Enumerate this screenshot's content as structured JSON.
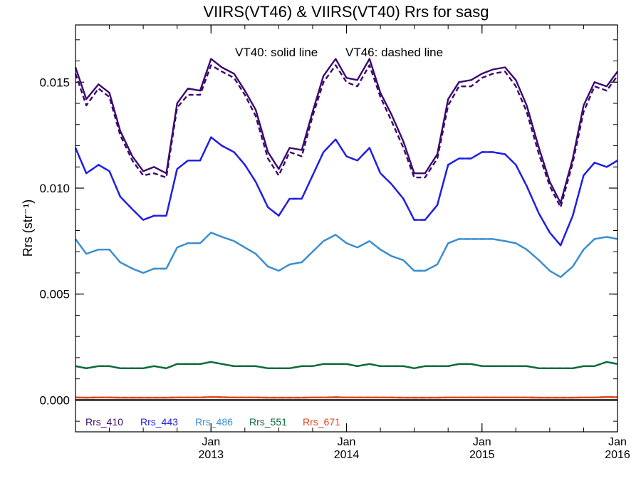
{
  "chart_data": {
    "type": "line",
    "title": "VIIRS(VT46) & VIIRS(VT40)  Rrs for sasg",
    "ylabel": "Rrs (str⁻¹)",
    "xlabel": "",
    "annotations": [
      "VT40: solid line",
      "VT46: dashed line"
    ],
    "ylim": [
      -0.0015,
      0.0177
    ],
    "xlim": [
      2012.0,
      2016.0
    ],
    "y_ticks": [
      0.0,
      0.005,
      0.01,
      0.015
    ],
    "y_tick_labels": [
      "0.000",
      "0.005",
      "0.010",
      "0.015"
    ],
    "x_ticks": [
      {
        "x": 2013.0,
        "month": "Jan",
        "year": "2013"
      },
      {
        "x": 2014.0,
        "month": "Jan",
        "year": "2014"
      },
      {
        "x": 2015.0,
        "month": "Jan",
        "year": "2015"
      },
      {
        "x": 2016.0,
        "month": "Jan",
        "year": "2016"
      }
    ],
    "legend_position": "bottom-left",
    "x": [
      2012.0,
      2012.08,
      2012.17,
      2012.25,
      2012.33,
      2012.42,
      2012.5,
      2012.58,
      2012.67,
      2012.75,
      2012.83,
      2012.92,
      2013.0,
      2013.08,
      2013.17,
      2013.25,
      2013.33,
      2013.42,
      2013.5,
      2013.58,
      2013.67,
      2013.75,
      2013.83,
      2013.92,
      2014.0,
      2014.08,
      2014.17,
      2014.25,
      2014.33,
      2014.42,
      2014.5,
      2014.58,
      2014.67,
      2014.75,
      2014.83,
      2014.92,
      2015.0,
      2015.08,
      2015.17,
      2015.25,
      2015.33,
      2015.42,
      2015.5,
      2015.58,
      2015.67,
      2015.75,
      2015.83,
      2015.92,
      2016.0
    ],
    "series": [
      {
        "name": "Rrs_410",
        "color": "#3b0a6e",
        "style": "solid",
        "values": [
          0.0157,
          0.0142,
          0.0149,
          0.0145,
          0.0127,
          0.0115,
          0.0108,
          0.011,
          0.0107,
          0.014,
          0.0147,
          0.0146,
          0.0161,
          0.0157,
          0.0154,
          0.0146,
          0.0137,
          0.0117,
          0.0109,
          0.0119,
          0.0118,
          0.0136,
          0.0153,
          0.0161,
          0.0152,
          0.0151,
          0.0161,
          0.0145,
          0.0135,
          0.0122,
          0.0107,
          0.0107,
          0.0116,
          0.0142,
          0.015,
          0.0151,
          0.0154,
          0.0156,
          0.0157,
          0.0151,
          0.0139,
          0.0119,
          0.0103,
          0.0093,
          0.0114,
          0.0139,
          0.015,
          0.0148,
          0.0155
        ]
      },
      {
        "name": "Rrs_410",
        "color": "#3b0a6e",
        "style": "dashed",
        "values": [
          0.0154,
          0.0139,
          0.0147,
          0.0143,
          0.0125,
          0.0113,
          0.0106,
          0.0107,
          0.0105,
          0.0138,
          0.0144,
          0.0144,
          0.0158,
          0.0155,
          0.0152,
          0.0144,
          0.0134,
          0.0114,
          0.0106,
          0.0117,
          0.0115,
          0.0134,
          0.015,
          0.0158,
          0.015,
          0.0148,
          0.0158,
          0.0143,
          0.0132,
          0.0119,
          0.0105,
          0.0105,
          0.0114,
          0.0139,
          0.0148,
          0.0148,
          0.0152,
          0.0154,
          0.0155,
          0.0148,
          0.0136,
          0.0116,
          0.0101,
          0.0091,
          0.0112,
          0.0136,
          0.0148,
          0.0146,
          0.0153
        ]
      },
      {
        "name": "Rrs_443",
        "color": "#1f1fe6",
        "style": "solid",
        "values": [
          0.0119,
          0.0107,
          0.0111,
          0.0108,
          0.0096,
          0.009,
          0.0085,
          0.0087,
          0.0087,
          0.0109,
          0.0113,
          0.0113,
          0.0124,
          0.012,
          0.0117,
          0.0111,
          0.0103,
          0.0091,
          0.0087,
          0.0095,
          0.0095,
          0.0106,
          0.0117,
          0.0123,
          0.0115,
          0.0113,
          0.0119,
          0.0107,
          0.0102,
          0.0095,
          0.0085,
          0.0085,
          0.0092,
          0.0111,
          0.0114,
          0.0114,
          0.0117,
          0.0117,
          0.0116,
          0.0111,
          0.0101,
          0.0088,
          0.0079,
          0.0073,
          0.0087,
          0.0106,
          0.0112,
          0.011,
          0.0113
        ]
      },
      {
        "name": "Rrs_443",
        "color": "#1f1fe6",
        "style": "dashed",
        "values": [
          0.0119,
          0.0107,
          0.0111,
          0.0108,
          0.0096,
          0.009,
          0.0085,
          0.0087,
          0.0087,
          0.0109,
          0.0113,
          0.0113,
          0.0124,
          0.012,
          0.0117,
          0.0111,
          0.0103,
          0.0091,
          0.0087,
          0.0095,
          0.0095,
          0.0106,
          0.0117,
          0.0123,
          0.0115,
          0.0113,
          0.0119,
          0.0107,
          0.0102,
          0.0095,
          0.0085,
          0.0085,
          0.0092,
          0.0111,
          0.0114,
          0.0114,
          0.0117,
          0.0117,
          0.0116,
          0.0111,
          0.0101,
          0.0088,
          0.0079,
          0.0073,
          0.0087,
          0.0106,
          0.0112,
          0.011,
          0.0113
        ]
      },
      {
        "name": "Rrs_486",
        "color": "#3b8fcf",
        "style": "solid",
        "values": [
          0.0076,
          0.0069,
          0.0071,
          0.0071,
          0.0065,
          0.0062,
          0.006,
          0.0062,
          0.0062,
          0.0072,
          0.0074,
          0.0074,
          0.0079,
          0.0077,
          0.0075,
          0.0072,
          0.0069,
          0.0063,
          0.0061,
          0.0064,
          0.0065,
          0.007,
          0.0075,
          0.0078,
          0.0074,
          0.0072,
          0.0075,
          0.0071,
          0.0068,
          0.0066,
          0.0061,
          0.0061,
          0.0064,
          0.0074,
          0.0076,
          0.0076,
          0.0076,
          0.0076,
          0.0075,
          0.0074,
          0.0071,
          0.0066,
          0.0061,
          0.0058,
          0.0063,
          0.0071,
          0.0076,
          0.0077,
          0.0076
        ]
      },
      {
        "name": "Rrs_486",
        "color": "#3b8fcf",
        "style": "dashed",
        "values": [
          0.0076,
          0.0069,
          0.0071,
          0.0071,
          0.0065,
          0.0062,
          0.006,
          0.0062,
          0.0062,
          0.0072,
          0.0074,
          0.0074,
          0.0079,
          0.0077,
          0.0075,
          0.0072,
          0.0069,
          0.0063,
          0.0061,
          0.0064,
          0.0065,
          0.007,
          0.0075,
          0.0078,
          0.0074,
          0.0072,
          0.0075,
          0.0071,
          0.0068,
          0.0066,
          0.0061,
          0.0061,
          0.0064,
          0.0074,
          0.0076,
          0.0076,
          0.0076,
          0.0076,
          0.0075,
          0.0074,
          0.0071,
          0.0066,
          0.0061,
          0.0058,
          0.0063,
          0.0071,
          0.0076,
          0.0077,
          0.0076
        ]
      },
      {
        "name": "Rrs_551",
        "color": "#0d6b3a",
        "style": "solid",
        "values": [
          0.0016,
          0.0015,
          0.0016,
          0.0016,
          0.0015,
          0.0015,
          0.0015,
          0.0016,
          0.0015,
          0.0017,
          0.0017,
          0.0017,
          0.0018,
          0.0017,
          0.0016,
          0.0016,
          0.0016,
          0.0015,
          0.0015,
          0.0015,
          0.0016,
          0.0016,
          0.0017,
          0.0017,
          0.0017,
          0.0016,
          0.0017,
          0.0016,
          0.0016,
          0.0016,
          0.0015,
          0.0016,
          0.0016,
          0.0016,
          0.0017,
          0.0017,
          0.0016,
          0.0016,
          0.0016,
          0.0016,
          0.0016,
          0.0015,
          0.0015,
          0.0015,
          0.0015,
          0.0016,
          0.0016,
          0.0018,
          0.0017
        ]
      },
      {
        "name": "Rrs_551",
        "color": "#0d6b3a",
        "style": "dashed",
        "values": [
          0.0016,
          0.0015,
          0.0016,
          0.0016,
          0.0015,
          0.0015,
          0.0015,
          0.0016,
          0.0015,
          0.0017,
          0.0017,
          0.0017,
          0.0018,
          0.0017,
          0.0016,
          0.0016,
          0.0016,
          0.0015,
          0.0015,
          0.0015,
          0.0016,
          0.0016,
          0.0017,
          0.0017,
          0.0017,
          0.0016,
          0.0017,
          0.0016,
          0.0016,
          0.0016,
          0.0015,
          0.0016,
          0.0016,
          0.0016,
          0.0017,
          0.0017,
          0.0016,
          0.0016,
          0.0016,
          0.0016,
          0.0016,
          0.0015,
          0.0015,
          0.0015,
          0.0015,
          0.0016,
          0.0016,
          0.0018,
          0.0017
        ]
      },
      {
        "name": "Rrs_671",
        "color": "#e0461a",
        "style": "solid",
        "values": [
          0.00012,
          0.00011,
          0.00012,
          0.00012,
          0.00011,
          0.00011,
          0.00011,
          0.00011,
          0.00011,
          0.00012,
          0.00012,
          0.00012,
          0.00014,
          0.00013,
          0.00012,
          0.00012,
          0.00012,
          0.00011,
          0.00011,
          0.00011,
          0.00011,
          0.00012,
          0.00012,
          0.00013,
          0.00012,
          0.00012,
          0.00012,
          0.00012,
          0.00012,
          0.00011,
          0.00011,
          0.00011,
          0.00011,
          0.00012,
          0.00012,
          0.00012,
          0.00012,
          0.00012,
          0.00012,
          0.00012,
          0.00012,
          0.00011,
          0.00011,
          0.00011,
          0.00011,
          0.00012,
          0.00012,
          0.00014,
          0.00013
        ]
      },
      {
        "name": "Rrs_671",
        "color": "#e0461a",
        "style": "dashed",
        "values": [
          0.00012,
          0.00011,
          0.00012,
          0.00012,
          0.00011,
          0.00011,
          0.00011,
          0.00011,
          0.00011,
          0.00012,
          0.00012,
          0.00012,
          0.00014,
          0.00013,
          0.00012,
          0.00012,
          0.00012,
          0.00011,
          0.00011,
          0.00011,
          0.00011,
          0.00012,
          0.00012,
          0.00013,
          0.00012,
          0.00012,
          0.00012,
          0.00012,
          0.00012,
          0.00011,
          0.00011,
          0.00011,
          0.00011,
          0.00012,
          0.00012,
          0.00012,
          0.00012,
          0.00012,
          0.00012,
          0.00012,
          0.00012,
          0.00011,
          0.00011,
          0.00011,
          0.00011,
          0.00012,
          0.00012,
          0.00014,
          0.00013
        ]
      }
    ],
    "zero_line": 0.0,
    "legend": [
      {
        "label": "Rrs_410",
        "color": "#3b0a6e"
      },
      {
        "label": "Rrs_443",
        "color": "#1f1fe6"
      },
      {
        "label": "Rrs_486",
        "color": "#3b8fcf"
      },
      {
        "label": "Rrs_551",
        "color": "#0d6b3a"
      },
      {
        "label": "Rrs_671",
        "color": "#e0461a"
      }
    ]
  }
}
